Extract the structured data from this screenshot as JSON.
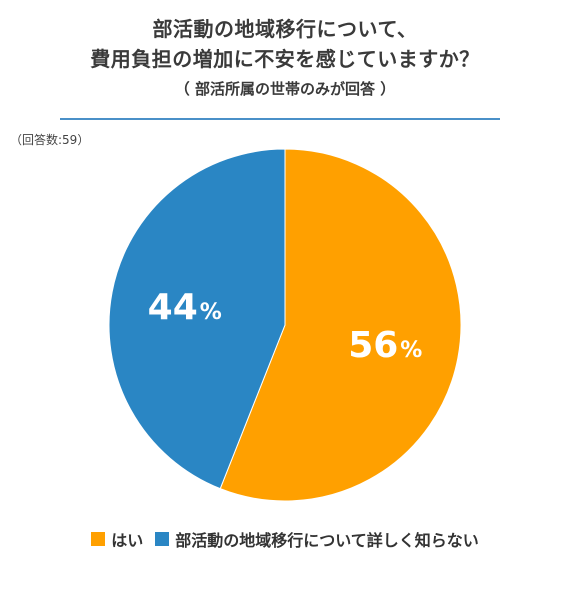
{
  "title_line1": "部活動の地域移行について、",
  "title_line2": "費用負担の増加に不安を感じていますか？",
  "subtitle": "（ 部活所属の世帯のみが回答 ）",
  "respondents": "（回答数:59）",
  "colors": {
    "yes": "#ffa000",
    "unknown": "#2a86c4",
    "divider": "#4a90c8"
  },
  "chart_data": {
    "type": "pie",
    "title": "部活動の地域移行について、費用負担の増加に不安を感じていますか？",
    "categories": [
      "はい",
      "部活動の地域移行について詳しく知らない"
    ],
    "values": [
      56,
      44
    ],
    "labels": [
      "56",
      "44"
    ],
    "unit": "%",
    "legend_position": "bottom",
    "start": "top, clockwise"
  },
  "legend": [
    {
      "label": "はい",
      "color": "#ffa000"
    },
    {
      "label": "部活動の地域移行について詳しく知らない",
      "color": "#2a86c4"
    }
  ]
}
